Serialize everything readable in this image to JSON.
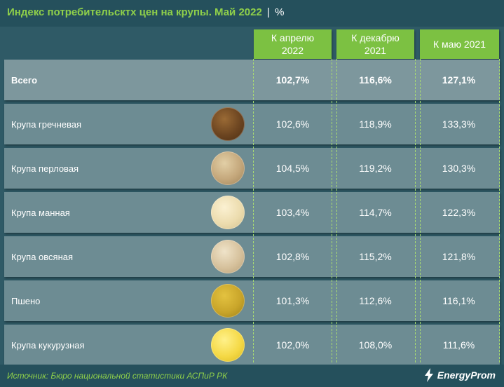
{
  "header": {
    "title": "Индекс потребительсктх цен на крупы. Май 2022",
    "separator": "|",
    "unit": "%"
  },
  "columns": [
    "К апрелю\n2022",
    "К декабрю\n2021",
    "К маю 2021"
  ],
  "rows": [
    {
      "label": "Всего",
      "values": [
        "102,7%",
        "116,6%",
        "127,1%"
      ]
    },
    {
      "label": "Крупа гречневая",
      "values": [
        "102,6%",
        "118,9%",
        "133,3%"
      ],
      "icon": "buckwheat-icon"
    },
    {
      "label": "Крупа перловая",
      "values": [
        "104,5%",
        "119,2%",
        "130,3%"
      ],
      "icon": "pearl-barley-icon"
    },
    {
      "label": "Крупа манная",
      "values": [
        "103,4%",
        "114,7%",
        "122,3%"
      ],
      "icon": "semolina-icon"
    },
    {
      "label": "Крупа овсяная",
      "values": [
        "102,8%",
        "115,2%",
        "121,8%"
      ],
      "icon": "oatmeal-icon"
    },
    {
      "label": "Пшено",
      "values": [
        "101,3%",
        "112,6%",
        "116,1%"
      ],
      "icon": "millet-icon"
    },
    {
      "label": "Крупа кукурузная",
      "values": [
        "102,0%",
        "108,0%",
        "111,6%"
      ],
      "icon": "corn-grits-icon"
    }
  ],
  "footer": {
    "source": "Источник: Бюро национальной статистики АСПиР РК",
    "brand": "EnergyProm"
  },
  "colors": {
    "accent_green": "#7cc142",
    "title_green": "#8fd04a",
    "background": "#2f5a66",
    "row": "#6d8c93"
  },
  "chart_data": {
    "type": "table",
    "title": "Индекс потребительсктх цен на крупы. Май 2022",
    "unit": "%",
    "columns": [
      "К апрелю 2022",
      "К декабрю 2021",
      "К маю 2021"
    ],
    "categories": [
      "Всего",
      "Крупа гречневая",
      "Крупа перловая",
      "Крупа манная",
      "Крупа овсяная",
      "Пшено",
      "Крупа кукурузная"
    ],
    "series": [
      {
        "name": "К апрелю 2022",
        "values": [
          102.7,
          102.6,
          104.5,
          103.4,
          102.8,
          101.3,
          102.0
        ]
      },
      {
        "name": "К декабрю 2021",
        "values": [
          116.6,
          118.9,
          119.2,
          114.7,
          115.2,
          112.6,
          108.0
        ]
      },
      {
        "name": "К маю 2021",
        "values": [
          127.1,
          133.3,
          130.3,
          122.3,
          121.8,
          116.1,
          111.6
        ]
      }
    ]
  }
}
